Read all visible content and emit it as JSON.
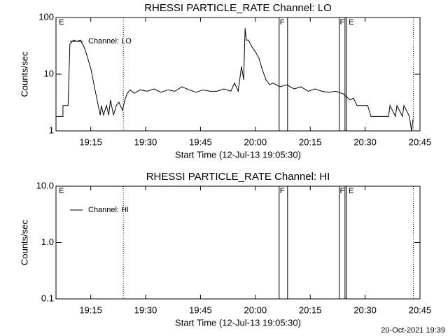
{
  "chart_data": [
    {
      "type": "line",
      "title": "RHESSI PARTICLE_RATE Channel: LO",
      "xlabel": "Start Time (12-Jul-13 19:05:30)",
      "ylabel": "Counts/sec",
      "x": [
        0,
        1.9,
        1.9,
        3.3,
        3.8,
        4.8,
        5.7,
        6.7,
        7.7,
        8.6,
        9.6,
        10.5,
        11.5,
        12.1,
        12.4,
        13.0,
        13.8,
        14.4,
        14.9,
        15.7,
        16.5,
        17.2,
        18.2,
        18.8,
        19.5,
        20.3,
        21.4,
        23.0,
        24.9,
        26.8,
        28.7,
        30.6,
        32.5,
        34.4,
        36.4,
        38.3,
        40.2,
        42.1,
        44.0,
        45.9,
        47.8,
        48.8,
        49.8,
        50.7,
        51.3,
        51.7,
        52.0,
        52.6,
        53.6,
        54.5,
        55.5,
        56.4,
        57.4,
        58.4,
        59.3,
        61.2,
        63.1,
        65.1,
        67.0,
        68.9,
        70.8,
        72.7,
        74.6,
        76.5,
        78.5,
        80.4,
        81.3,
        82.3,
        83.2,
        85.2,
        86.1,
        89.0,
        90.9,
        91.3,
        92.8,
        93.2,
        94.7,
        95.1,
        96.6,
        97.2,
        97.6
      ],
      "series": [
        {
          "name": "Channel: LO",
          "color": "#000000",
          "values": [
            1.8,
            1.8,
            2.8,
            2.8,
            34,
            40,
            38,
            40,
            30,
            20,
            12,
            6,
            2.9,
            1.9,
            2.8,
            1.9,
            2.8,
            1.9,
            3.5,
            1.9,
            2.8,
            3.2,
            2.3,
            3.5,
            4.6,
            5.3,
            4.6,
            5.3,
            5.0,
            5.5,
            4.8,
            5.3,
            5.0,
            6.0,
            5.3,
            4.8,
            5.3,
            5.0,
            5.0,
            5.5,
            5.0,
            7.0,
            5.0,
            13.7,
            8,
            65,
            40,
            40,
            30,
            25,
            19,
            12,
            8,
            6.5,
            7,
            6,
            6.5,
            5.5,
            6,
            5,
            5.5,
            5,
            4.8,
            5,
            4.5,
            3.5,
            3.8,
            2.8,
            2.8,
            2.8,
            1.8,
            1.8,
            1.8,
            2.8,
            1.8,
            2.8,
            1.8,
            2.8,
            1.8,
            1.0,
            1.6
          ]
        }
      ],
      "xlim": [
        0,
        99.5
      ],
      "xticks": [
        {
          "value": 9.5,
          "label": "19:15"
        },
        {
          "value": 24.5,
          "label": "19:30"
        },
        {
          "value": 39.5,
          "label": "19:45"
        },
        {
          "value": 54.5,
          "label": "20:00"
        },
        {
          "value": 69.5,
          "label": "20:15"
        },
        {
          "value": 84.5,
          "label": "20:30"
        },
        {
          "value": 99.5,
          "label": "20:45"
        }
      ],
      "ylim": [
        1,
        100
      ],
      "yticks": [
        1,
        10,
        100
      ],
      "log_y": true,
      "legend": "upper left",
      "vlines": [
        {
          "x": 18.4,
          "style": "dotted"
        },
        {
          "x": 61.0,
          "style": "solid"
        },
        {
          "x": 63.3,
          "style": "solid"
        },
        {
          "x": 77.4,
          "style": "solid"
        },
        {
          "x": 79.0,
          "style": "solid"
        },
        {
          "x": 79.4,
          "style": "solid"
        },
        {
          "x": 97.7,
          "style": "dotted"
        }
      ],
      "flags": [
        {
          "x": 0.6,
          "label": "E"
        },
        {
          "x": 61.0,
          "label": "F"
        },
        {
          "x": 77.4,
          "label": "F"
        },
        {
          "x": 79.8,
          "label": "E"
        }
      ]
    },
    {
      "type": "line",
      "title": "RHESSI PARTICLE_RATE Channel: HI",
      "xlabel": "Start Time (12-Jul-13 19:05:30)",
      "ylabel": "Counts/sec",
      "x": [],
      "series": [
        {
          "name": "Channel: HI",
          "color": "#000000",
          "values": []
        }
      ],
      "xlim": [
        0,
        99.5
      ],
      "xticks": [
        {
          "value": 9.5,
          "label": "19:15"
        },
        {
          "value": 24.5,
          "label": "19:30"
        },
        {
          "value": 39.5,
          "label": "19:45"
        },
        {
          "value": 54.5,
          "label": "20:00"
        },
        {
          "value": 69.5,
          "label": "20:15"
        },
        {
          "value": 84.5,
          "label": "20:30"
        },
        {
          "value": 99.5,
          "label": "20:45"
        }
      ],
      "ylim": [
        0.1,
        10
      ],
      "yticks": [
        {
          "value": 0.1,
          "label": "0.1"
        },
        {
          "value": 1,
          "label": "1.0"
        },
        {
          "value": 10,
          "label": "10.0"
        }
      ],
      "log_y": true,
      "legend": "upper left",
      "vlines": [
        {
          "x": 18.4,
          "style": "dotted"
        },
        {
          "x": 61.0,
          "style": "solid"
        },
        {
          "x": 63.3,
          "style": "solid"
        },
        {
          "x": 77.4,
          "style": "solid"
        },
        {
          "x": 79.0,
          "style": "solid"
        },
        {
          "x": 79.4,
          "style": "solid"
        },
        {
          "x": 97.7,
          "style": "dotted"
        }
      ],
      "flags": [
        {
          "x": 0.6,
          "label": "E"
        },
        {
          "x": 61.0,
          "label": "F"
        },
        {
          "x": 77.4,
          "label": "F"
        },
        {
          "x": 79.8,
          "label": "E"
        }
      ]
    }
  ],
  "footer": "20-Oct-2021 19:39"
}
